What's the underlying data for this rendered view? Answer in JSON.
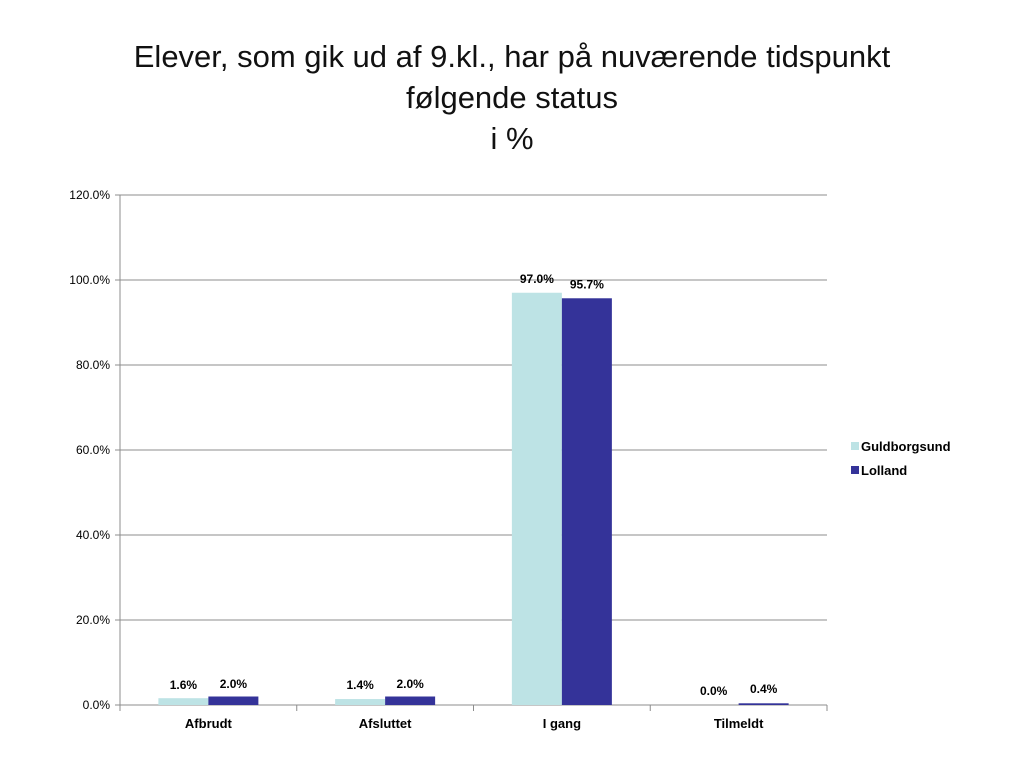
{
  "chart_data": {
    "type": "bar",
    "title": "Elever, som gik ud af 9.kl., har på nuværende tidspunkt følgende status i %",
    "title_lines": [
      "Elever, som gik ud af 9.kl., har på nuværende tidspunkt",
      "følgende status",
      "i %"
    ],
    "categories": [
      "Afbrudt",
      "Afsluttet",
      "I gang",
      "Tilmeldt"
    ],
    "series": [
      {
        "name": "Guldborgsund",
        "color": "#bde3e5",
        "values": [
          1.6,
          1.4,
          97.0,
          0.0
        ],
        "labels": [
          "1.6%",
          "1.4%",
          "97.0%",
          "0.0%"
        ]
      },
      {
        "name": "Lolland",
        "color": "#343399",
        "values": [
          2.0,
          2.0,
          95.7,
          0.4
        ],
        "labels": [
          "2.0%",
          "2.0%",
          "95.7%",
          "0.4%"
        ]
      }
    ],
    "ylim": [
      0,
      120
    ],
    "yticks": [
      0,
      20,
      40,
      60,
      80,
      100,
      120
    ],
    "ytick_labels": [
      "0.0%",
      "20.0%",
      "40.0%",
      "60.0%",
      "80.0%",
      "100.0%",
      "120.0%"
    ],
    "xlabel": "",
    "ylabel": "",
    "grid": true,
    "legend_position": "right"
  }
}
